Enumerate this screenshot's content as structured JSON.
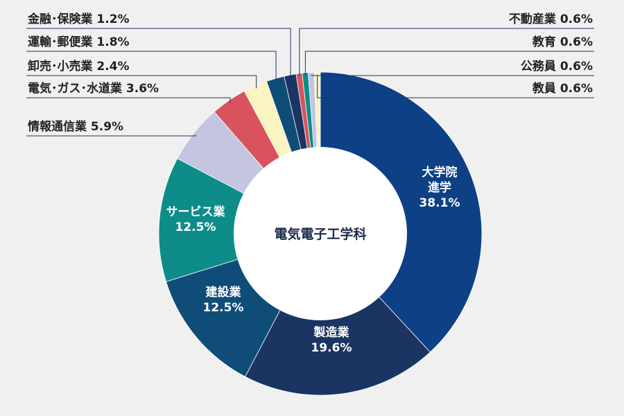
{
  "chart_data": {
    "type": "pie",
    "title": "電気電子工学科",
    "categories": [
      "大学院進学",
      "製造業",
      "建設業",
      "サービス業",
      "情報通信業",
      "電気・ガス・水道業",
      "卸売・小売業",
      "運輸・郵便業",
      "金融・保険業",
      "不動産業",
      "教育",
      "公務員",
      "教員"
    ],
    "values": [
      38.1,
      19.6,
      12.5,
      12.5,
      5.9,
      3.6,
      2.4,
      1.8,
      1.2,
      0.6,
      0.6,
      0.6,
      0.6
    ],
    "slices": [
      {
        "label": "大学院進学",
        "value_text": "38.1%",
        "color": "#0d4085",
        "inside_lines": [
          "大学院",
          "進学",
          "38.1%"
        ]
      },
      {
        "label": "製造業",
        "value_text": "19.6%",
        "color": "#1b3461",
        "inside_lines": [
          "製造業",
          "19.6%"
        ]
      },
      {
        "label": "建設業",
        "value_text": "12.5%",
        "color": "#0f4d78",
        "inside_lines": [
          "建設業",
          "12.5%"
        ]
      },
      {
        "label": "サービス業",
        "value_text": "12.5%",
        "color": "#0e8c8a",
        "inside_lines": [
          "サービス業",
          "12.5%"
        ]
      },
      {
        "label": "情報通信業",
        "value_text": "5.9%",
        "color": "#c3c5e1",
        "outside_text": "情報通信業 5.9%"
      },
      {
        "label": "電気・ガス・水道業",
        "value_text": "3.6%",
        "color": "#d9535e",
        "outside_text": "電気･ガス･水道業 3.6%"
      },
      {
        "label": "卸売・小売業",
        "value_text": "2.4%",
        "color": "#faf3c2",
        "outside_text": "卸売･小売業 2.4%"
      },
      {
        "label": "運輸・郵便業",
        "value_text": "1.8%",
        "color": "#0f4d78",
        "outside_text": "運輸･郵便業 1.8%"
      },
      {
        "label": "金融・保険業",
        "value_text": "1.2%",
        "color": "#1b3461",
        "outside_text": "金融･保険業 1.2%"
      },
      {
        "label": "不動産業",
        "value_text": "0.6%",
        "color": "#d9535e",
        "outside_text": "不動産業 0.6%"
      },
      {
        "label": "教育",
        "value_text": "0.6%",
        "color": "#0e8c8a",
        "outside_text": "教育 0.6%"
      },
      {
        "label": "公務員",
        "value_text": "0.6%",
        "color": "#c3c5e1",
        "outside_text": "公務員 0.6%"
      },
      {
        "label": "教員",
        "value_text": "0.6%",
        "color": "#faf3c2",
        "outside_text": "教員 0.6%"
      }
    ],
    "center_label": "電気電子工学科",
    "background": "#f0f0f0",
    "label_line_color": "#1b3461"
  }
}
